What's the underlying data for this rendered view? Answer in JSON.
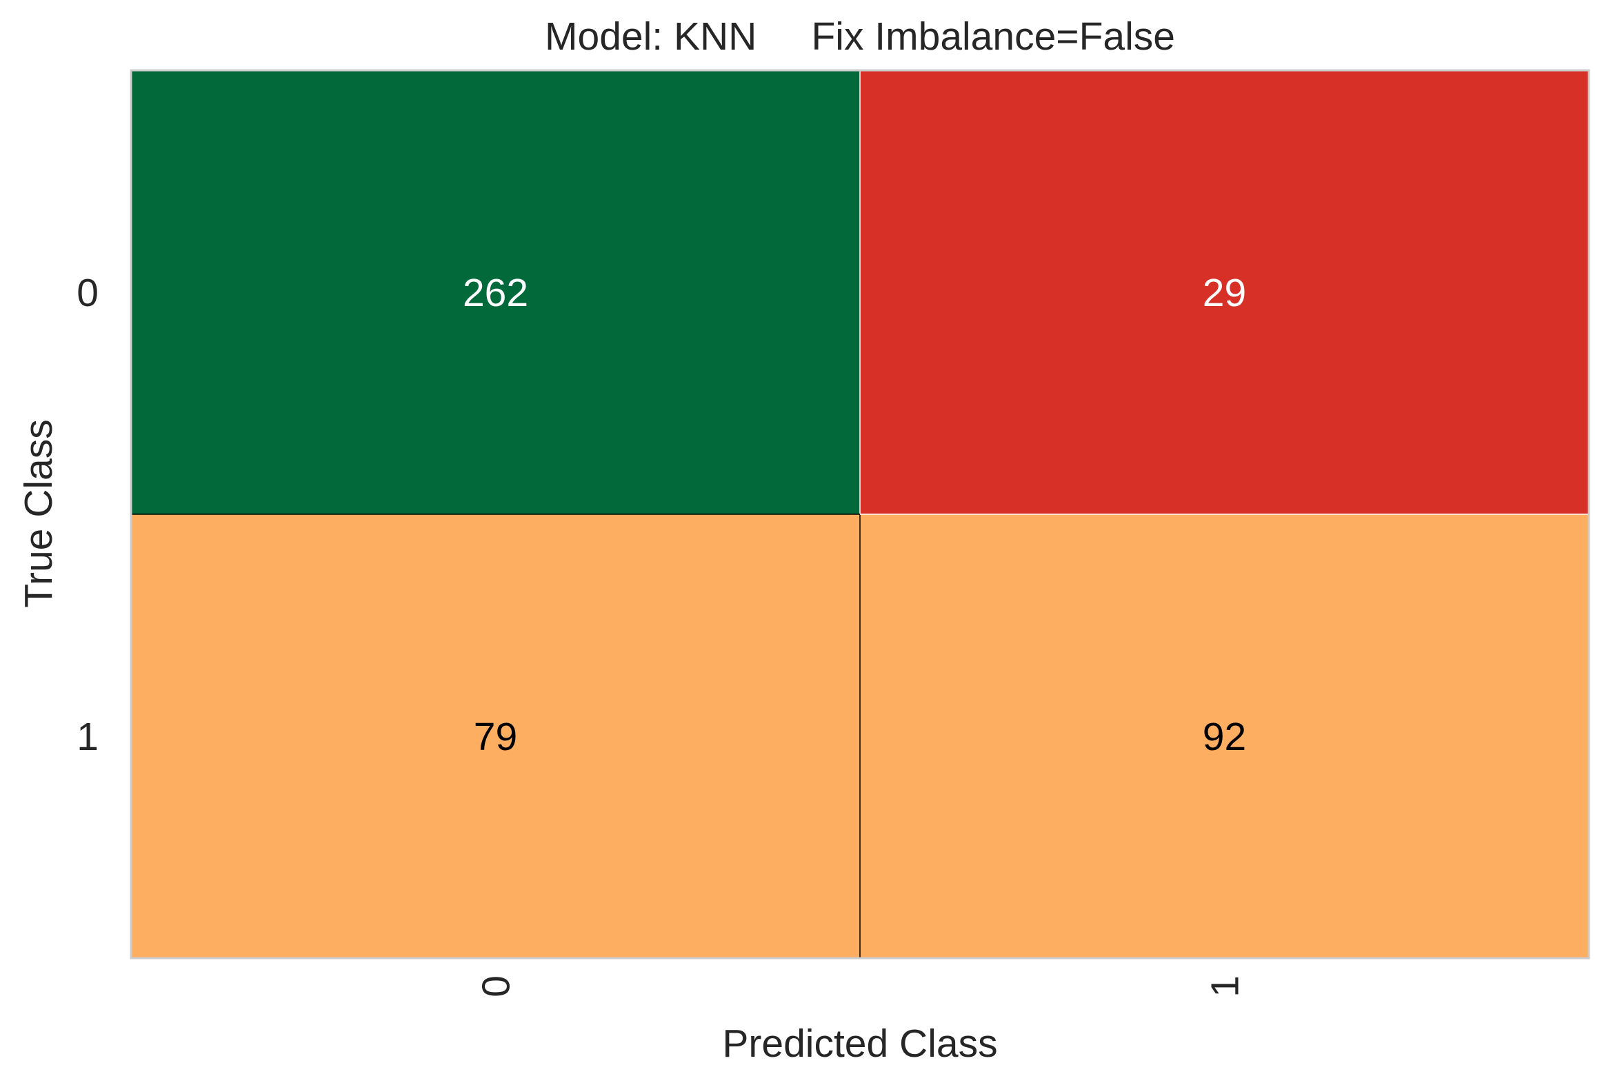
{
  "chart_data": {
    "type": "heatmap",
    "title": "Model: KNN     Fix Imbalance=False",
    "xlabel": "Predicted Class",
    "ylabel": "True Class",
    "x_categories": [
      "0",
      "1"
    ],
    "y_categories": [
      "0",
      "1"
    ],
    "matrix": [
      [
        262,
        29
      ],
      [
        79,
        92
      ]
    ],
    "cell_colors": [
      [
        "#02693A",
        "#D73027"
      ],
      [
        "#FDAE61",
        "#FDAE61"
      ]
    ],
    "label_colors": [
      [
        "#ffffff",
        "#ffffff"
      ],
      [
        "#000000",
        "#000000"
      ]
    ],
    "grid": false,
    "legend": "none"
  }
}
